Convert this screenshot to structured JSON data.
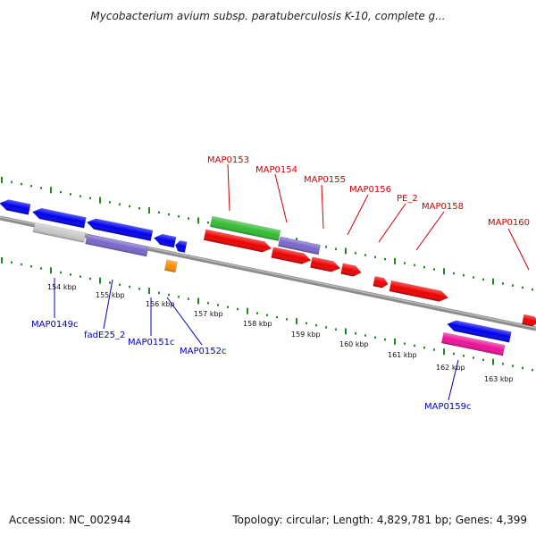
{
  "title": "Mycobacterium avium subsp. paratuberculosis K-10, complete g...",
  "footer": {
    "accession": "Accession: NC_002944",
    "stats": "Topology: circular; Length: 4,829,781 bp; Genes: 4,399"
  },
  "kbp_labels": [
    "154 kbp",
    "155 kbp",
    "156 kbp",
    "157 kbp",
    "158 kbp",
    "159 kbp",
    "160 kbp",
    "161 kbp",
    "162 kbp",
    "163 kbp"
  ],
  "forward_labels": [
    "MAP0153",
    "MAP0154",
    "MAP0155",
    "MAP0156",
    "PE_2",
    "MAP0158",
    "MAP0160"
  ],
  "reverse_labels": [
    "MAP0149c",
    "fadE25_2",
    "MAP0151c",
    "MAP0152c",
    "MAP0159c"
  ],
  "colors": {
    "forward_label": "#cc0000",
    "reverse_label": "#0000bb",
    "red": "#ee0000",
    "blue": "#0000ee",
    "green": "#33bb33",
    "purple": "#7a66cc",
    "gray": "#c8c8c8",
    "orange": "#ff8c00",
    "pink": "#ee1199",
    "tick": "#228822",
    "backbone": "#8c8c8c"
  }
}
